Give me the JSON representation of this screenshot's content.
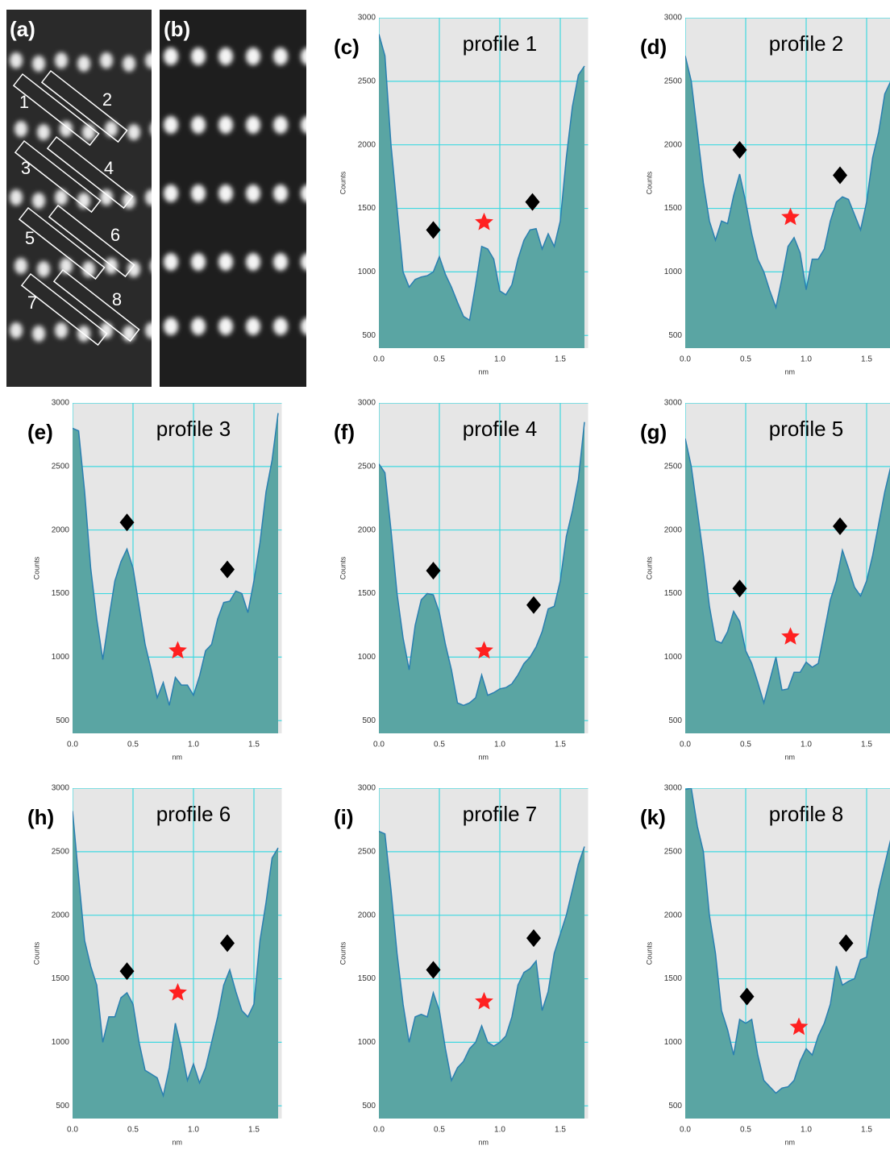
{
  "images": [
    {
      "label": "(a)",
      "regions": [
        "1",
        "2",
        "3",
        "4",
        "5",
        "6",
        "7",
        "8"
      ]
    },
    {
      "label": "(b)"
    }
  ],
  "chart_data": [
    {
      "type": "area",
      "panel": "(c)",
      "title": "profile 1",
      "xlabel": "nm",
      "ylabel": "Counts",
      "color": "#5aa5a3",
      "line_color": "#2a7fb0",
      "grid": true,
      "x": [
        0,
        0.05,
        0.1,
        0.15,
        0.2,
        0.25,
        0.3,
        0.35,
        0.4,
        0.45,
        0.5,
        0.55,
        0.6,
        0.65,
        0.7,
        0.75,
        0.8,
        0.85,
        0.9,
        0.95,
        1,
        1.05,
        1.1,
        1.15,
        1.2,
        1.25,
        1.3,
        1.35,
        1.4,
        1.45,
        1.5,
        1.55,
        1.6,
        1.65,
        1.7
      ],
      "values": [
        2870,
        2700,
        2000,
        1500,
        1000,
        880,
        940,
        960,
        970,
        1000,
        1120,
        980,
        880,
        760,
        650,
        620,
        900,
        1200,
        1180,
        1100,
        850,
        820,
        900,
        1100,
        1250,
        1330,
        1340,
        1180,
        1300,
        1200,
        1400,
        1900,
        2300,
        2550,
        2620
      ],
      "xlim": [
        0,
        1.73
      ],
      "ylim": [
        400,
        3000
      ],
      "xticks": [
        {
          "value": 0,
          "label": "0.0"
        },
        {
          "value": 0.5,
          "label": "0.5"
        },
        {
          "value": 1,
          "label": "1.0"
        },
        {
          "value": 1.5,
          "label": "1.5"
        }
      ],
      "yticks": [
        500,
        1000,
        1500,
        2000,
        2500,
        3000
      ],
      "markers": [
        {
          "shape": "diamond",
          "color": "#000000",
          "x": 0.45,
          "y": 1330
        },
        {
          "shape": "star",
          "color": "#ff2020",
          "x": 0.87,
          "y": 1390
        },
        {
          "shape": "diamond",
          "color": "#000000",
          "x": 1.27,
          "y": 1550
        }
      ]
    },
    {
      "type": "area",
      "panel": "(d)",
      "title": "profile 2",
      "xlabel": "nm",
      "ylabel": "Counts",
      "color": "#5aa5a3",
      "line_color": "#2a7fb0",
      "grid": true,
      "x": [
        0,
        0.05,
        0.1,
        0.15,
        0.2,
        0.25,
        0.3,
        0.35,
        0.4,
        0.45,
        0.5,
        0.55,
        0.6,
        0.65,
        0.7,
        0.75,
        0.8,
        0.85,
        0.9,
        0.95,
        1,
        1.05,
        1.1,
        1.15,
        1.2,
        1.25,
        1.3,
        1.35,
        1.4,
        1.45,
        1.5,
        1.55,
        1.6,
        1.65,
        1.7
      ],
      "values": [
        2700,
        2500,
        2100,
        1700,
        1400,
        1250,
        1400,
        1380,
        1600,
        1770,
        1550,
        1300,
        1100,
        1000,
        850,
        720,
        950,
        1200,
        1270,
        1150,
        860,
        1100,
        1100,
        1180,
        1400,
        1550,
        1590,
        1570,
        1450,
        1330,
        1550,
        1900,
        2100,
        2400,
        2500
      ],
      "xlim": [
        0,
        1.73
      ],
      "ylim": [
        400,
        3000
      ],
      "xticks": [
        {
          "value": 0,
          "label": "0.0"
        },
        {
          "value": 0.5,
          "label": "0.5"
        },
        {
          "value": 1,
          "label": "1.0"
        },
        {
          "value": 1.5,
          "label": "1.5"
        }
      ],
      "yticks": [
        500,
        1000,
        1500,
        2000,
        2500,
        3000
      ],
      "markers": [
        {
          "shape": "diamond",
          "color": "#000000",
          "x": 0.45,
          "y": 1960
        },
        {
          "shape": "star",
          "color": "#ff2020",
          "x": 0.87,
          "y": 1430
        },
        {
          "shape": "diamond",
          "color": "#000000",
          "x": 1.28,
          "y": 1760
        }
      ]
    },
    {
      "type": "area",
      "panel": "(e)",
      "title": "profile 3",
      "xlabel": "nm",
      "ylabel": "Counts",
      "color": "#5aa5a3",
      "line_color": "#2a7fb0",
      "grid": true,
      "x": [
        0,
        0.05,
        0.1,
        0.15,
        0.2,
        0.25,
        0.3,
        0.35,
        0.4,
        0.45,
        0.5,
        0.55,
        0.6,
        0.65,
        0.7,
        0.75,
        0.8,
        0.85,
        0.9,
        0.95,
        1,
        1.05,
        1.1,
        1.15,
        1.2,
        1.25,
        1.3,
        1.35,
        1.4,
        1.45,
        1.5,
        1.55,
        1.6,
        1.65,
        1.7
      ],
      "values": [
        2800,
        2780,
        2300,
        1700,
        1300,
        980,
        1300,
        1600,
        1750,
        1850,
        1700,
        1400,
        1100,
        900,
        680,
        800,
        620,
        840,
        780,
        780,
        700,
        850,
        1050,
        1100,
        1300,
        1430,
        1440,
        1520,
        1500,
        1350,
        1600,
        1900,
        2300,
        2550,
        2920
      ],
      "xlim": [
        0,
        1.73
      ],
      "ylim": [
        400,
        3000
      ],
      "xticks": [
        {
          "value": 0,
          "label": "0.0"
        },
        {
          "value": 0.5,
          "label": "0.5"
        },
        {
          "value": 1,
          "label": "1.0"
        },
        {
          "value": 1.5,
          "label": "1.5"
        }
      ],
      "yticks": [
        500,
        1000,
        1500,
        2000,
        2500,
        3000
      ],
      "markers": [
        {
          "shape": "diamond",
          "color": "#000000",
          "x": 0.45,
          "y": 2060
        },
        {
          "shape": "star",
          "color": "#ff2020",
          "x": 0.87,
          "y": 1050
        },
        {
          "shape": "diamond",
          "color": "#000000",
          "x": 1.28,
          "y": 1690
        }
      ]
    },
    {
      "type": "area",
      "panel": "(f)",
      "title": "profile 4",
      "xlabel": "nm",
      "ylabel": "Counts",
      "color": "#5aa5a3",
      "line_color": "#2a7fb0",
      "grid": true,
      "x": [
        0,
        0.05,
        0.1,
        0.15,
        0.2,
        0.25,
        0.3,
        0.35,
        0.4,
        0.45,
        0.5,
        0.55,
        0.6,
        0.65,
        0.7,
        0.75,
        0.8,
        0.85,
        0.9,
        0.95,
        1,
        1.05,
        1.1,
        1.15,
        1.2,
        1.25,
        1.3,
        1.35,
        1.4,
        1.45,
        1.5,
        1.55,
        1.6,
        1.65,
        1.7
      ],
      "values": [
        2520,
        2450,
        2000,
        1500,
        1150,
        900,
        1250,
        1450,
        1500,
        1490,
        1350,
        1100,
        900,
        640,
        620,
        640,
        680,
        860,
        700,
        720,
        750,
        760,
        790,
        860,
        950,
        1000,
        1080,
        1200,
        1380,
        1400,
        1600,
        1950,
        2150,
        2400,
        2850
      ],
      "xlim": [
        0,
        1.73
      ],
      "ylim": [
        400,
        3000
      ],
      "xticks": [
        {
          "value": 0,
          "label": "0.0"
        },
        {
          "value": 0.5,
          "label": "0.5"
        },
        {
          "value": 1,
          "label": "1.0"
        },
        {
          "value": 1.5,
          "label": "1.5"
        }
      ],
      "yticks": [
        500,
        1000,
        1500,
        2000,
        2500,
        3000
      ],
      "markers": [
        {
          "shape": "diamond",
          "color": "#000000",
          "x": 0.45,
          "y": 1680
        },
        {
          "shape": "star",
          "color": "#ff2020",
          "x": 0.87,
          "y": 1050
        },
        {
          "shape": "diamond",
          "color": "#000000",
          "x": 1.28,
          "y": 1410
        }
      ]
    },
    {
      "type": "area",
      "panel": "(g)",
      "title": "profile 5",
      "xlabel": "nm",
      "ylabel": "Counts",
      "color": "#5aa5a3",
      "line_color": "#2a7fb0",
      "grid": true,
      "x": [
        0,
        0.05,
        0.1,
        0.15,
        0.2,
        0.25,
        0.3,
        0.35,
        0.4,
        0.45,
        0.5,
        0.55,
        0.6,
        0.65,
        0.7,
        0.75,
        0.8,
        0.85,
        0.9,
        0.95,
        1,
        1.05,
        1.1,
        1.15,
        1.2,
        1.25,
        1.3,
        1.35,
        1.4,
        1.45,
        1.5,
        1.55,
        1.6,
        1.65,
        1.7
      ],
      "values": [
        2720,
        2500,
        2150,
        1800,
        1400,
        1130,
        1110,
        1200,
        1360,
        1280,
        1050,
        950,
        800,
        640,
        820,
        1000,
        740,
        750,
        880,
        880,
        960,
        920,
        950,
        1200,
        1450,
        1600,
        1840,
        1700,
        1550,
        1480,
        1600,
        1800,
        2050,
        2300,
        2500
      ],
      "xlim": [
        0,
        1.73
      ],
      "ylim": [
        400,
        3000
      ],
      "xticks": [
        {
          "value": 0,
          "label": "0.0"
        },
        {
          "value": 0.5,
          "label": "0.5"
        },
        {
          "value": 1,
          "label": "1.0"
        },
        {
          "value": 1.5,
          "label": "1.5"
        }
      ],
      "yticks": [
        500,
        1000,
        1500,
        2000,
        2500,
        3000
      ],
      "markers": [
        {
          "shape": "diamond",
          "color": "#000000",
          "x": 0.45,
          "y": 1540
        },
        {
          "shape": "star",
          "color": "#ff2020",
          "x": 0.87,
          "y": 1160
        },
        {
          "shape": "diamond",
          "color": "#000000",
          "x": 1.28,
          "y": 2030
        }
      ]
    },
    {
      "type": "area",
      "panel": "(h)",
      "title": "profile 6",
      "xlabel": "nm",
      "ylabel": "Counts",
      "color": "#5aa5a3",
      "line_color": "#2a7fb0",
      "grid": true,
      "x": [
        0,
        0.05,
        0.1,
        0.15,
        0.2,
        0.25,
        0.3,
        0.35,
        0.4,
        0.45,
        0.5,
        0.55,
        0.6,
        0.65,
        0.7,
        0.75,
        0.8,
        0.85,
        0.9,
        0.95,
        1,
        1.05,
        1.1,
        1.15,
        1.2,
        1.25,
        1.3,
        1.35,
        1.4,
        1.45,
        1.5,
        1.55,
        1.6,
        1.65,
        1.7
      ],
      "values": [
        2820,
        2300,
        1800,
        1600,
        1450,
        1000,
        1200,
        1200,
        1350,
        1390,
        1300,
        1000,
        780,
        750,
        720,
        580,
        800,
        1150,
        950,
        700,
        830,
        680,
        800,
        1000,
        1200,
        1450,
        1570,
        1400,
        1250,
        1200,
        1300,
        1800,
        2100,
        2450,
        2530
      ],
      "xlim": [
        0,
        1.73
      ],
      "ylim": [
        400,
        3000
      ],
      "xticks": [
        {
          "value": 0,
          "label": "0.0"
        },
        {
          "value": 0.5,
          "label": "0.5"
        },
        {
          "value": 1,
          "label": "1.0"
        },
        {
          "value": 1.5,
          "label": "1.5"
        }
      ],
      "yticks": [
        500,
        1000,
        1500,
        2000,
        2500,
        3000
      ],
      "markers": [
        {
          "shape": "diamond",
          "color": "#000000",
          "x": 0.45,
          "y": 1560
        },
        {
          "shape": "star",
          "color": "#ff2020",
          "x": 0.87,
          "y": 1390
        },
        {
          "shape": "diamond",
          "color": "#000000",
          "x": 1.28,
          "y": 1780
        }
      ]
    },
    {
      "type": "area",
      "panel": "(i)",
      "title": "profile 7",
      "xlabel": "nm",
      "ylabel": "Counts",
      "color": "#5aa5a3",
      "line_color": "#2a7fb0",
      "grid": true,
      "x": [
        0,
        0.05,
        0.1,
        0.15,
        0.2,
        0.25,
        0.3,
        0.35,
        0.4,
        0.45,
        0.5,
        0.55,
        0.6,
        0.65,
        0.7,
        0.75,
        0.8,
        0.85,
        0.9,
        0.95,
        1,
        1.05,
        1.1,
        1.15,
        1.2,
        1.25,
        1.3,
        1.35,
        1.4,
        1.45,
        1.5,
        1.55,
        1.6,
        1.65,
        1.7
      ],
      "values": [
        2660,
        2640,
        2200,
        1700,
        1300,
        1000,
        1200,
        1220,
        1200,
        1390,
        1250,
        950,
        700,
        800,
        850,
        950,
        1000,
        1130,
        1000,
        970,
        1000,
        1050,
        1200,
        1450,
        1550,
        1580,
        1640,
        1250,
        1400,
        1700,
        1850,
        2000,
        2200,
        2400,
        2540
      ],
      "xlim": [
        0,
        1.73
      ],
      "ylim": [
        400,
        3000
      ],
      "xticks": [
        {
          "value": 0,
          "label": "0.0"
        },
        {
          "value": 0.5,
          "label": "0.5"
        },
        {
          "value": 1,
          "label": "1.0"
        },
        {
          "value": 1.5,
          "label": "1.5"
        }
      ],
      "yticks": [
        500,
        1000,
        1500,
        2000,
        2500,
        3000
      ],
      "markers": [
        {
          "shape": "diamond",
          "color": "#000000",
          "x": 0.45,
          "y": 1570
        },
        {
          "shape": "star",
          "color": "#ff2020",
          "x": 0.87,
          "y": 1320
        },
        {
          "shape": "diamond",
          "color": "#000000",
          "x": 1.28,
          "y": 1820
        }
      ]
    },
    {
      "type": "area",
      "panel": "(k)",
      "title": "profile 8",
      "xlabel": "nm",
      "ylabel": "Counts",
      "color": "#5aa5a3",
      "line_color": "#2a7fb0",
      "grid": true,
      "x": [
        0,
        0.05,
        0.1,
        0.15,
        0.2,
        0.25,
        0.3,
        0.35,
        0.4,
        0.45,
        0.5,
        0.55,
        0.6,
        0.65,
        0.7,
        0.75,
        0.8,
        0.85,
        0.9,
        0.95,
        1,
        1.05,
        1.1,
        1.15,
        1.2,
        1.25,
        1.3,
        1.35,
        1.4,
        1.45,
        1.5,
        1.55,
        1.6,
        1.65,
        1.7
      ],
      "values": [
        2990,
        3000,
        2700,
        2500,
        2000,
        1700,
        1250,
        1100,
        900,
        1180,
        1150,
        1180,
        900,
        700,
        650,
        600,
        640,
        650,
        700,
        850,
        950,
        900,
        1050,
        1150,
        1300,
        1600,
        1450,
        1480,
        1500,
        1650,
        1670,
        1950,
        2200,
        2400,
        2600
      ],
      "xlim": [
        0,
        1.73
      ],
      "ylim": [
        400,
        3000
      ],
      "xticks": [
        {
          "value": 0,
          "label": "0.0"
        },
        {
          "value": 0.5,
          "label": "0.5"
        },
        {
          "value": 1,
          "label": "1.0"
        },
        {
          "value": 1.5,
          "label": "1.5"
        }
      ],
      "yticks": [
        500,
        1000,
        1500,
        2000,
        2500,
        3000
      ],
      "markers": [
        {
          "shape": "diamond",
          "color": "#000000",
          "x": 0.51,
          "y": 1360
        },
        {
          "shape": "star",
          "color": "#ff2020",
          "x": 0.94,
          "y": 1120
        },
        {
          "shape": "diamond",
          "color": "#000000",
          "x": 1.33,
          "y": 1780
        }
      ]
    }
  ]
}
